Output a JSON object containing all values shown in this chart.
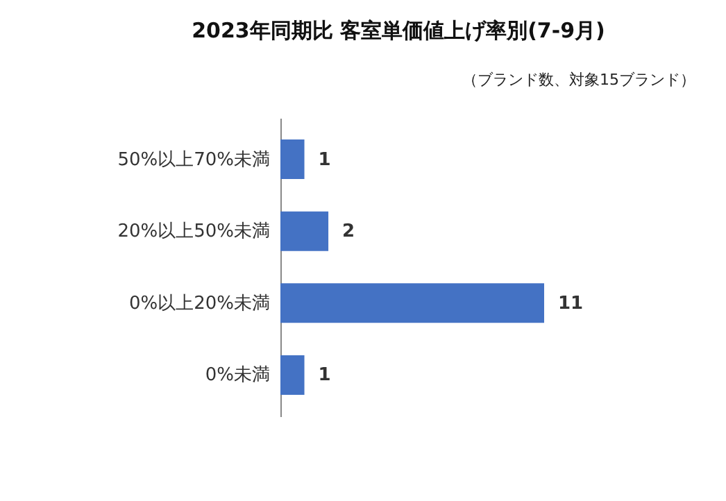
{
  "chart_data": {
    "type": "bar",
    "orientation": "horizontal",
    "title": "2023年同期比  客室単価値上げ率別(7-9月)",
    "subtitle": "（ブランド数、対象15ブランド）",
    "categories": [
      "50%以上70%未満",
      "20%以上50%未満",
      "0%以上20%未満",
      "0%未満"
    ],
    "values": [
      1,
      2,
      11,
      1
    ],
    "color": "#4472c4",
    "data_labels": true
  }
}
